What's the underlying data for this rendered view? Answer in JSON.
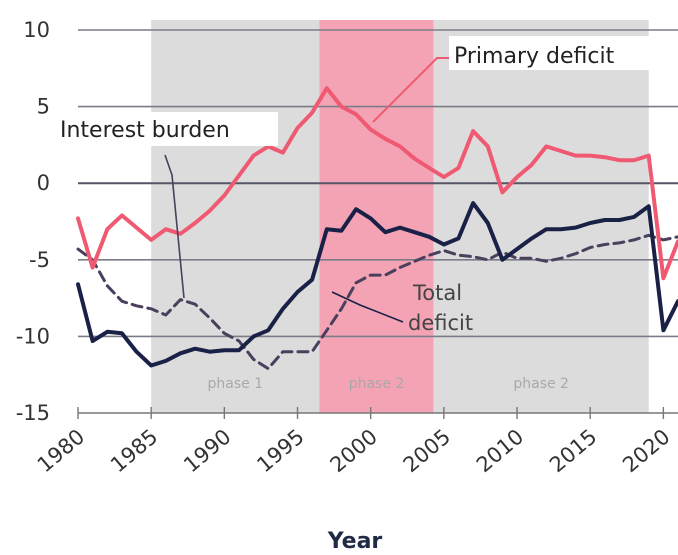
{
  "chart_data": {
    "type": "line",
    "xlabel": "Year",
    "ylabel": "",
    "xlim": [
      1980,
      2021
    ],
    "ylim": [
      -15,
      10
    ],
    "x_ticks": [
      1980,
      1985,
      1990,
      1995,
      2000,
      2005,
      2010,
      2015,
      2020
    ],
    "y_ticks": [
      10,
      5,
      0,
      -5,
      -10,
      -15
    ],
    "grid": true,
    "shaded_periods": [
      {
        "label": "phase 1",
        "start": 1985,
        "end": 1996.5,
        "color": "#dcdcdc"
      },
      {
        "label": "phase 2",
        "start": 1996.5,
        "end": 2004.3,
        "color": "#f3a3b4"
      },
      {
        "label": "phase 2",
        "start": 2004.3,
        "end": 2019,
        "color": "#dcdcdc"
      }
    ],
    "series": [
      {
        "name": "Primary deficit",
        "color": "#ef5a72",
        "style": "solid",
        "x": [
          1980,
          1981,
          1982,
          1983,
          1984,
          1985,
          1986,
          1987,
          1988,
          1989,
          1990,
          1991,
          1992,
          1993,
          1994,
          1995,
          1996,
          1997,
          1998,
          1999,
          2000,
          2001,
          2002,
          2003,
          2004,
          2005,
          2006,
          2007,
          2008,
          2009,
          2010,
          2011,
          2012,
          2013,
          2014,
          2015,
          2016,
          2017,
          2018,
          2019,
          2020,
          2021
        ],
        "values": [
          -2.3,
          -5.5,
          -3.0,
          -2.1,
          -2.9,
          -3.7,
          -3.0,
          -3.3,
          -2.6,
          -1.8,
          -0.8,
          0.5,
          1.8,
          2.4,
          2.0,
          3.6,
          4.6,
          6.2,
          5.0,
          4.5,
          3.5,
          2.9,
          2.4,
          1.6,
          1.0,
          0.4,
          1.0,
          3.4,
          2.4,
          -0.6,
          0.4,
          1.2,
          2.4,
          2.1,
          1.8,
          1.8,
          1.7,
          1.5,
          1.5,
          1.8,
          -6.2,
          -3.8
        ]
      },
      {
        "name": "Total deficit",
        "color": "#1a2147",
        "style": "solid",
        "x": [
          1980,
          1981,
          1982,
          1983,
          1984,
          1985,
          1986,
          1987,
          1988,
          1989,
          1990,
          1991,
          1992,
          1993,
          1994,
          1995,
          1996,
          1997,
          1998,
          1999,
          2000,
          2001,
          2002,
          2003,
          2004,
          2005,
          2006,
          2007,
          2008,
          2009,
          2010,
          2011,
          2012,
          2013,
          2014,
          2015,
          2016,
          2017,
          2018,
          2019,
          2020,
          2021
        ],
        "values": [
          -6.6,
          -10.3,
          -9.7,
          -9.8,
          -11.0,
          -11.9,
          -11.6,
          -11.1,
          -10.8,
          -11.0,
          -10.9,
          -10.9,
          -10.0,
          -9.6,
          -8.2,
          -7.1,
          -6.3,
          -3.0,
          -3.1,
          -1.7,
          -2.3,
          -3.2,
          -2.9,
          -3.2,
          -3.5,
          -4.0,
          -3.6,
          -1.3,
          -2.6,
          -5.0,
          -4.3,
          -3.6,
          -3.0,
          -3.0,
          -2.9,
          -2.6,
          -2.4,
          -2.4,
          -2.2,
          -1.5,
          -9.6,
          -7.7
        ]
      },
      {
        "name": "Interest burden",
        "color": "#4a3f5c",
        "style": "dashed",
        "x": [
          1980,
          1981,
          1982,
          1983,
          1984,
          1985,
          1986,
          1987,
          1988,
          1989,
          1990,
          1991,
          1992,
          1993,
          1994,
          1995,
          1996,
          1997,
          1998,
          1999,
          2000,
          2001,
          2002,
          2003,
          2004,
          2005,
          2006,
          2007,
          2008,
          2009,
          2010,
          2011,
          2012,
          2013,
          2014,
          2015,
          2016,
          2017,
          2018,
          2019,
          2020,
          2021
        ],
        "values": [
          -4.3,
          -5.0,
          -6.7,
          -7.7,
          -8.0,
          -8.2,
          -8.6,
          -7.6,
          -7.9,
          -8.8,
          -9.8,
          -10.3,
          -11.5,
          -12.1,
          -11.0,
          -11.0,
          -11.0,
          -9.6,
          -8.2,
          -6.5,
          -6.0,
          -6.0,
          -5.5,
          -5.1,
          -4.7,
          -4.4,
          -4.7,
          -4.8,
          -5.0,
          -4.5,
          -4.9,
          -4.9,
          -5.1,
          -4.9,
          -4.6,
          -4.2,
          -4.0,
          -3.9,
          -3.7,
          -3.4,
          -3.7,
          -3.5
        ]
      }
    ],
    "annotations": {
      "primary": "Primary deficit",
      "interest": "Interest burden",
      "total_line1": "Total",
      "total_line2": "deficit"
    }
  }
}
